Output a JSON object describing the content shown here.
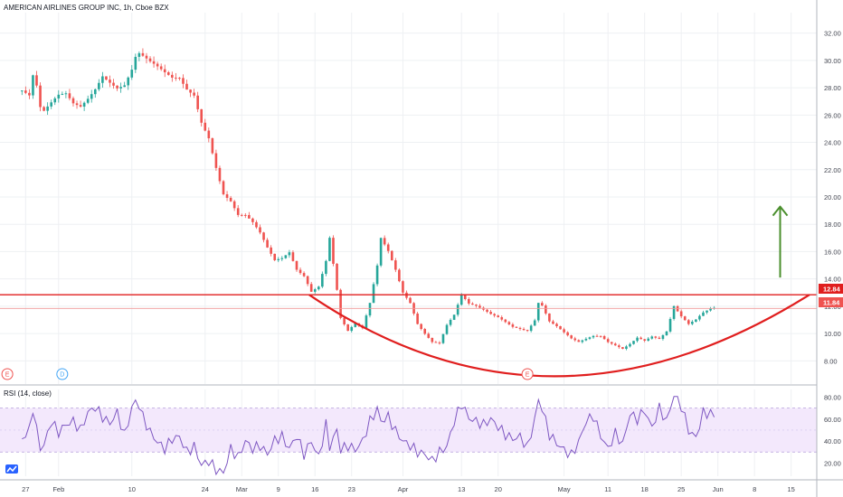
{
  "chart_data": {
    "type": "candlestick",
    "title": "AMERICAN AIRLINES GROUP INC, 1h, Cboe BZX",
    "price_axis": {
      "ticks": [
        8,
        10,
        12,
        14,
        16,
        18,
        20,
        22,
        24,
        26,
        28,
        30,
        32
      ],
      "range": [
        6.3,
        33.5
      ],
      "labels": [
        "8.00",
        "10.00",
        "12.00",
        "14.00",
        "16.00",
        "18.00",
        "20.00",
        "22.00",
        "24.00",
        "26.00",
        "28.00",
        "30.00",
        "32.00"
      ]
    },
    "x_ticks": [
      {
        "label": "27",
        "pos": 0.5
      },
      {
        "label": "Feb",
        "pos": 5
      },
      {
        "label": "10",
        "pos": 15
      },
      {
        "label": "24",
        "pos": 25
      },
      {
        "label": "Mar",
        "pos": 30
      },
      {
        "label": "9",
        "pos": 35
      },
      {
        "label": "16",
        "pos": 40
      },
      {
        "label": "23",
        "pos": 45
      },
      {
        "label": "Apr",
        "pos": 52
      },
      {
        "label": "13",
        "pos": 60
      },
      {
        "label": "20",
        "pos": 65
      },
      {
        "label": "May",
        "pos": 74
      },
      {
        "label": "11",
        "pos": 80
      },
      {
        "label": "18",
        "pos": 85
      },
      {
        "label": "25",
        "pos": 90
      },
      {
        "label": "Jun",
        "pos": 95
      },
      {
        "label": "8",
        "pos": 100
      },
      {
        "label": "15",
        "pos": 105
      }
    ],
    "x_range": [
      -3,
      108.5
    ],
    "close_series": [
      {
        "x": 0,
        "c": 27.8
      },
      {
        "x": 1,
        "c": 27.3
      },
      {
        "x": 1.5,
        "c": 28.7
      },
      {
        "x": 2,
        "c": 27.9
      },
      {
        "x": 2.5,
        "c": 26.3
      },
      {
        "x": 3,
        "c": 26.0
      },
      {
        "x": 4,
        "c": 26.6
      },
      {
        "x": 5,
        "c": 27.2
      },
      {
        "x": 6,
        "c": 27.4
      },
      {
        "x": 7,
        "c": 26.8
      },
      {
        "x": 8,
        "c": 26.7
      },
      {
        "x": 9,
        "c": 27.4
      },
      {
        "x": 10,
        "c": 28.2
      },
      {
        "x": 11,
        "c": 29.2
      },
      {
        "x": 12,
        "c": 28.7
      },
      {
        "x": 13,
        "c": 28.2
      },
      {
        "x": 14,
        "c": 28.3
      },
      {
        "x": 15,
        "c": 29.3
      },
      {
        "x": 15.7,
        "c": 30.5
      },
      {
        "x": 16.5,
        "c": 30.1
      },
      {
        "x": 17.5,
        "c": 29.6
      },
      {
        "x": 18.5,
        "c": 29.2
      },
      {
        "x": 19.5,
        "c": 28.8
      },
      {
        "x": 20.5,
        "c": 28.5
      },
      {
        "x": 21.5,
        "c": 28.6
      },
      {
        "x": 22.5,
        "c": 27.9
      },
      {
        "x": 23.5,
        "c": 27.6
      },
      {
        "x": 24.5,
        "c": 25.7
      },
      {
        "x": 25.5,
        "c": 24.6
      },
      {
        "x": 26.5,
        "c": 22.4
      },
      {
        "x": 27.5,
        "c": 20.4
      },
      {
        "x": 28.5,
        "c": 19.8
      },
      {
        "x": 29.5,
        "c": 18.7
      },
      {
        "x": 30.5,
        "c": 18.6
      },
      {
        "x": 31.5,
        "c": 18.0
      },
      {
        "x": 32.5,
        "c": 17.2
      },
      {
        "x": 33.5,
        "c": 16.1
      },
      {
        "x": 34.5,
        "c": 15.2
      },
      {
        "x": 35.5,
        "c": 15.4
      },
      {
        "x": 36.5,
        "c": 15.9
      },
      {
        "x": 37.5,
        "c": 14.7
      },
      {
        "x": 38.5,
        "c": 14.3
      },
      {
        "x": 39.5,
        "c": 13.2
      },
      {
        "x": 40.5,
        "c": 13.6
      },
      {
        "x": 41.5,
        "c": 15.5
      },
      {
        "x": 42,
        "c": 17.2
      },
      {
        "x": 43,
        "c": 13.3
      },
      {
        "x": 43.5,
        "c": 11.2
      },
      {
        "x": 44.5,
        "c": 10.2
      },
      {
        "x": 45.5,
        "c": 10.7
      },
      {
        "x": 46.5,
        "c": 10.3
      },
      {
        "x": 47.5,
        "c": 12.1
      },
      {
        "x": 48.5,
        "c": 14.8
      },
      {
        "x": 49,
        "c": 16.8
      },
      {
        "x": 50,
        "c": 15.9
      },
      {
        "x": 51,
        "c": 14.6
      },
      {
        "x": 52,
        "c": 13.0
      },
      {
        "x": 53,
        "c": 12.3
      },
      {
        "x": 54,
        "c": 10.8
      },
      {
        "x": 55,
        "c": 10.1
      },
      {
        "x": 56,
        "c": 9.5
      },
      {
        "x": 57,
        "c": 9.4
      },
      {
        "x": 58,
        "c": 10.7
      },
      {
        "x": 59,
        "c": 11.4
      },
      {
        "x": 60,
        "c": 12.8
      },
      {
        "x": 61,
        "c": 12.1
      },
      {
        "x": 62,
        "c": 11.9
      },
      {
        "x": 63,
        "c": 11.6
      },
      {
        "x": 64,
        "c": 11.3
      },
      {
        "x": 65,
        "c": 11.1
      },
      {
        "x": 66,
        "c": 10.8
      },
      {
        "x": 67,
        "c": 10.5
      },
      {
        "x": 68,
        "c": 10.4
      },
      {
        "x": 69,
        "c": 10.3
      },
      {
        "x": 70,
        "c": 11.1
      },
      {
        "x": 70.5,
        "c": 12.4
      },
      {
        "x": 71,
        "c": 12.2
      },
      {
        "x": 72,
        "c": 11.0
      },
      {
        "x": 73,
        "c": 10.6
      },
      {
        "x": 74,
        "c": 10.1
      },
      {
        "x": 75,
        "c": 9.6
      },
      {
        "x": 76,
        "c": 9.3
      },
      {
        "x": 77,
        "c": 9.5
      },
      {
        "x": 78,
        "c": 9.7
      },
      {
        "x": 79,
        "c": 9.7
      },
      {
        "x": 80,
        "c": 9.3
      },
      {
        "x": 81,
        "c": 9.1
      },
      {
        "x": 82,
        "c": 8.9
      },
      {
        "x": 83,
        "c": 9.3
      },
      {
        "x": 84,
        "c": 9.8
      },
      {
        "x": 85,
        "c": 9.6
      },
      {
        "x": 86,
        "c": 9.9
      },
      {
        "x": 87,
        "c": 9.7
      },
      {
        "x": 88,
        "c": 10.2
      },
      {
        "x": 89,
        "c": 12.0
      },
      {
        "x": 90,
        "c": 11.2
      },
      {
        "x": 91,
        "c": 10.6
      },
      {
        "x": 92,
        "c": 10.9
      },
      {
        "x": 93,
        "c": 11.4
      },
      {
        "x": 94,
        "c": 11.7
      },
      {
        "x": 94.7,
        "c": 11.8
      }
    ],
    "rsi": {
      "label": "RSI (14, close)",
      "ticks": [
        20,
        40,
        60,
        80
      ],
      "tick_labels": [
        "20.00",
        "40.00",
        "60.00",
        "80.00"
      ],
      "range": [
        8,
        87
      ],
      "band": [
        30,
        70
      ],
      "values": [
        {
          "x": 0,
          "v": 42
        },
        {
          "x": 1,
          "v": 50
        },
        {
          "x": 1.5,
          "v": 70
        },
        {
          "x": 2,
          "v": 50
        },
        {
          "x": 2.5,
          "v": 34
        },
        {
          "x": 3,
          "v": 36
        },
        {
          "x": 4,
          "v": 58
        },
        {
          "x": 5,
          "v": 48
        },
        {
          "x": 6,
          "v": 55
        },
        {
          "x": 7,
          "v": 58
        },
        {
          "x": 8,
          "v": 50
        },
        {
          "x": 9,
          "v": 66
        },
        {
          "x": 10,
          "v": 71
        },
        {
          "x": 11,
          "v": 62
        },
        {
          "x": 12,
          "v": 56
        },
        {
          "x": 13,
          "v": 66
        },
        {
          "x": 14,
          "v": 45
        },
        {
          "x": 15,
          "v": 70
        },
        {
          "x": 15.7,
          "v": 79
        },
        {
          "x": 16.5,
          "v": 62
        },
        {
          "x": 17.5,
          "v": 48
        },
        {
          "x": 18.5,
          "v": 39
        },
        {
          "x": 19.5,
          "v": 33
        },
        {
          "x": 20.5,
          "v": 42
        },
        {
          "x": 21.5,
          "v": 44
        },
        {
          "x": 22.5,
          "v": 30
        },
        {
          "x": 23.5,
          "v": 35
        },
        {
          "x": 24.5,
          "v": 18
        },
        {
          "x": 25.5,
          "v": 22
        },
        {
          "x": 26.5,
          "v": 14
        },
        {
          "x": 27.5,
          "v": 11
        },
        {
          "x": 28.5,
          "v": 33
        },
        {
          "x": 29.5,
          "v": 25
        },
        {
          "x": 30.5,
          "v": 40
        },
        {
          "x": 31.5,
          "v": 33
        },
        {
          "x": 32.5,
          "v": 36
        },
        {
          "x": 33.5,
          "v": 28
        },
        {
          "x": 34.5,
          "v": 41
        },
        {
          "x": 35.5,
          "v": 44
        },
        {
          "x": 36.5,
          "v": 33
        },
        {
          "x": 37.5,
          "v": 45
        },
        {
          "x": 38.5,
          "v": 28
        },
        {
          "x": 39.5,
          "v": 40
        },
        {
          "x": 40.5,
          "v": 25
        },
        {
          "x": 41.5,
          "v": 55
        },
        {
          "x": 42,
          "v": 35
        },
        {
          "x": 43,
          "v": 50
        },
        {
          "x": 43.5,
          "v": 32
        },
        {
          "x": 44.5,
          "v": 36
        },
        {
          "x": 45.5,
          "v": 32
        },
        {
          "x": 46.5,
          "v": 40
        },
        {
          "x": 47.5,
          "v": 58
        },
        {
          "x": 48.5,
          "v": 69
        },
        {
          "x": 49,
          "v": 58
        },
        {
          "x": 50,
          "v": 62
        },
        {
          "x": 51,
          "v": 49
        },
        {
          "x": 52,
          "v": 40
        },
        {
          "x": 53,
          "v": 36
        },
        {
          "x": 54,
          "v": 30
        },
        {
          "x": 55,
          "v": 28
        },
        {
          "x": 56,
          "v": 22
        },
        {
          "x": 57,
          "v": 30
        },
        {
          "x": 58,
          "v": 35
        },
        {
          "x": 59,
          "v": 58
        },
        {
          "x": 60,
          "v": 74
        },
        {
          "x": 61,
          "v": 61
        },
        {
          "x": 62,
          "v": 58
        },
        {
          "x": 63,
          "v": 55
        },
        {
          "x": 64,
          "v": 60
        },
        {
          "x": 65,
          "v": 53
        },
        {
          "x": 66,
          "v": 46
        },
        {
          "x": 67,
          "v": 42
        },
        {
          "x": 68,
          "v": 44
        },
        {
          "x": 69,
          "v": 34
        },
        {
          "x": 70,
          "v": 60
        },
        {
          "x": 70.5,
          "v": 77
        },
        {
          "x": 71,
          "v": 70
        },
        {
          "x": 72,
          "v": 46
        },
        {
          "x": 73,
          "v": 38
        },
        {
          "x": 74,
          "v": 32
        },
        {
          "x": 75,
          "v": 27
        },
        {
          "x": 76,
          "v": 39
        },
        {
          "x": 77,
          "v": 58
        },
        {
          "x": 78,
          "v": 63
        },
        {
          "x": 79,
          "v": 45
        },
        {
          "x": 80,
          "v": 33
        },
        {
          "x": 81,
          "v": 47
        },
        {
          "x": 82,
          "v": 37
        },
        {
          "x": 83,
          "v": 65
        },
        {
          "x": 84,
          "v": 60
        },
        {
          "x": 85,
          "v": 68
        },
        {
          "x": 86,
          "v": 52
        },
        {
          "x": 87,
          "v": 70
        },
        {
          "x": 88,
          "v": 58
        },
        {
          "x": 89,
          "v": 82
        },
        {
          "x": 90,
          "v": 72
        },
        {
          "x": 91,
          "v": 50
        },
        {
          "x": 92,
          "v": 43
        },
        {
          "x": 93,
          "v": 66
        },
        {
          "x": 94,
          "v": 65
        },
        {
          "x": 94.7,
          "v": 63
        }
      ]
    },
    "annotations": {
      "resistance": 12.84,
      "last_price": 11.84,
      "resistance_label": "12.84",
      "last_price_label": "11.84",
      "cup_curve": "rounded bottom",
      "arrow": "up",
      "events": [
        {
          "text": "E",
          "x": -2,
          "style": "earnings"
        },
        {
          "text": "D",
          "x": 5.5,
          "style": "dividend"
        },
        {
          "text": "E",
          "x": 69,
          "style": "earnings"
        }
      ]
    }
  },
  "colors": {
    "up": "#26a69a",
    "down": "#ef5350",
    "grid": "#eef0f3",
    "line_red": "#e01e1e",
    "rsi_line": "#7e57c2",
    "rsi_band": "#f3e8fc",
    "arrow": "#4a8f2d",
    "text": "#131722"
  }
}
